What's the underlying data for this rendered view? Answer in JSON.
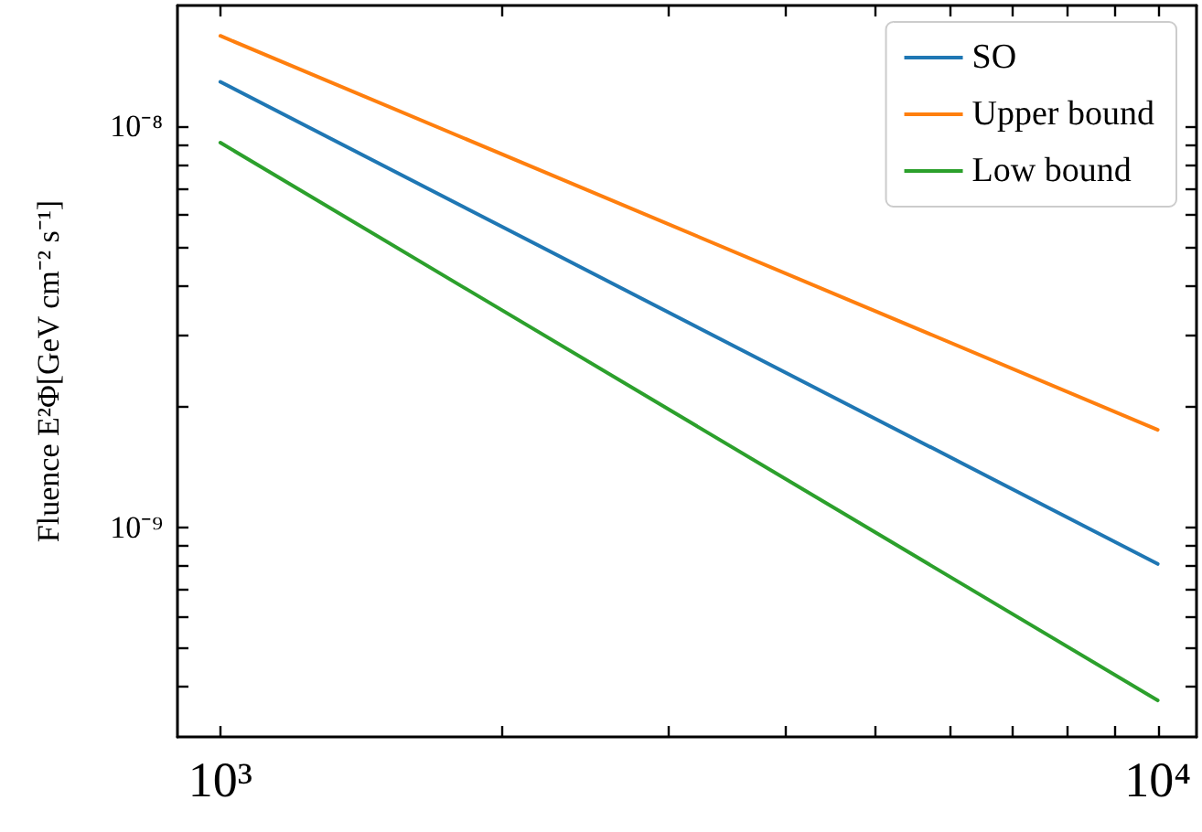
{
  "chart_data": {
    "type": "line",
    "ylabel": "Fluence E²Φ[GeV cm⁻² s⁻¹]",
    "log": "xy",
    "grid": false,
    "legend": "top right",
    "marker": "none",
    "line_style": "solid",
    "xlim": [
      900,
      11000
    ],
    "ylim": [
      3e-10,
      2e-08
    ],
    "xticks": [
      {
        "value": 1000,
        "label": "10³"
      },
      {
        "value": 2000,
        "label": null
      },
      {
        "value": 3000,
        "label": null
      },
      {
        "value": 4000,
        "label": null
      },
      {
        "value": 5000,
        "label": null
      },
      {
        "value": 6000,
        "label": null
      },
      {
        "value": 7000,
        "label": null
      },
      {
        "value": 8000,
        "label": null
      },
      {
        "value": 9000,
        "label": null
      },
      {
        "value": 10000,
        "label": "10⁴"
      }
    ],
    "yticks": [
      {
        "value": 4e-10,
        "label": null
      },
      {
        "value": 5e-10,
        "label": null
      },
      {
        "value": 6e-10,
        "label": null
      },
      {
        "value": 7e-10,
        "label": null
      },
      {
        "value": 8e-10,
        "label": null
      },
      {
        "value": 9e-10,
        "label": null
      },
      {
        "value": 1e-09,
        "label": "10⁻⁹"
      },
      {
        "value": 2e-09,
        "label": null
      },
      {
        "value": 3e-09,
        "label": null
      },
      {
        "value": 4e-09,
        "label": null
      },
      {
        "value": 5e-09,
        "label": null
      },
      {
        "value": 6e-09,
        "label": null
      },
      {
        "value": 7e-09,
        "label": null
      },
      {
        "value": 8e-09,
        "label": null
      },
      {
        "value": 9e-09,
        "label": null
      },
      {
        "value": 1e-08,
        "label": "10⁻⁸"
      }
    ],
    "x": [
      1000,
      10000
    ],
    "series": [
      {
        "name": "SO",
        "color": "#1f77b4",
        "values": [
          1.29e-08,
          8.1e-10
        ]
      },
      {
        "name": "Upper bound",
        "color": "#ff7f0e",
        "values": [
          1.68e-08,
          1.75e-09
        ]
      },
      {
        "name": "Low bound",
        "color": "#2ca02c",
        "values": [
          9.1e-09,
          3.7e-10
        ]
      }
    ]
  }
}
